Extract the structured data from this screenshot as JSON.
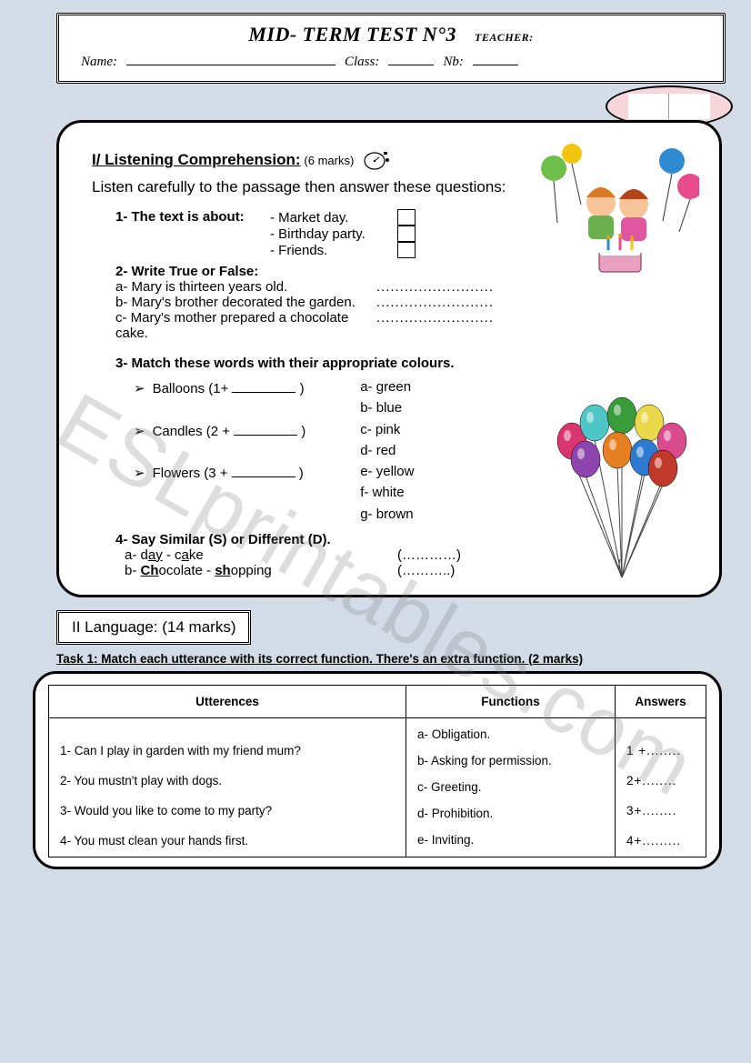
{
  "header": {
    "title": "MID- TERM TEST N°3",
    "teacher_label": "TEACHER:",
    "name_label": "Name:",
    "class_label": "Class:",
    "nb_label": "Nb:"
  },
  "watermark": "ESLprintables.com",
  "section1": {
    "title": "I/ Listening Comprehension:",
    "marks": "(6 marks)",
    "instruction": "Listen carefully to the passage then answer these questions:",
    "q1": {
      "prompt": "1- The text is about:",
      "options": [
        "- Market day.",
        "- Birthday party.",
        "- Friends."
      ]
    },
    "q2": {
      "prompt": "2- Write True or False:",
      "items": [
        "a- Mary is thirteen years old.",
        "b- Mary's brother decorated the garden.",
        "c- Mary's mother prepared a chocolate cake."
      ],
      "dots": "........................."
    },
    "q3": {
      "prompt": "3- Match these words with their appropriate colours.",
      "left": [
        "Balloons (1+",
        "Candles (2 +",
        "Flowers (3 +"
      ],
      "close": ")",
      "right": [
        "a- green",
        "b- blue",
        "c- pink",
        "d- red",
        "e- yellow",
        "f- white",
        "g- brown"
      ]
    },
    "q4": {
      "prompt": "4- Say Similar (S) or Different (D).",
      "rows": [
        {
          "a": "a- d",
          "ua": "ay",
          "b": "   -   c",
          "ub": "a",
          "c": "ke",
          "ans": "(…………)"
        },
        {
          "a": "b- ",
          "ua": "Ch",
          "b": "ocolate   -   ",
          "ub": "sh",
          "c": "opping",
          "ans": "(………..)"
        }
      ]
    }
  },
  "section2": {
    "title": "II Language: (14 marks)",
    "task1_line": "Task 1: Match each utterance with its correct function. There's an extra function.",
    "task1_marks": "(2 marks)",
    "table": {
      "headers": [
        "Utterences",
        "Functions",
        "Answers"
      ],
      "utterances": [
        "1- Can I play in garden with my friend mum?",
        "2- You mustn't play with dogs.",
        "3- Would you like to come to my party?",
        "4- You must clean your hands first."
      ],
      "functions": [
        "a- Obligation.",
        "b- Asking for permission.",
        "c- Greeting.",
        "d- Prohibition.",
        "e- Inviting."
      ],
      "answers": [
        "1 +........",
        "2+........",
        "3+........",
        "4+........."
      ]
    }
  },
  "balloon_colors": [
    "#d9356f",
    "#4fc6c6",
    "#3a9b3a",
    "#e8d84a",
    "#d94a8e",
    "#8e44ad",
    "#e67e22",
    "#2c7bd1",
    "#c0392b"
  ],
  "celebration": {
    "balloon_colors": [
      "#6fbf4b",
      "#2e8ad1",
      "#e84b8a",
      "#f1c40f"
    ],
    "kid_colors": {
      "hair1": "#d97a2a",
      "hair2": "#b3451a",
      "skin": "#f7c49a",
      "shirt1": "#6ab04c",
      "shirt2": "#e056a0"
    },
    "cake": {
      "base": "#e8a0c0",
      "icing": "#ffffff",
      "candle": "#2e8ad1"
    }
  }
}
